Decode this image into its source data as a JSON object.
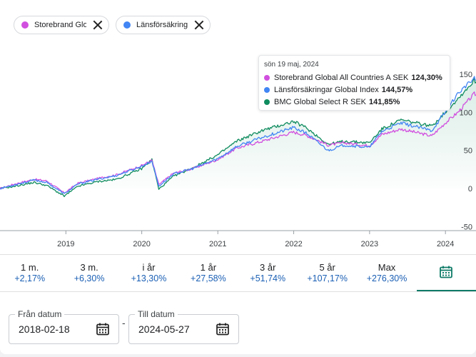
{
  "chips": [
    {
      "label": "Storebrand Glob...",
      "color": "#d14fdf"
    },
    {
      "label": "Länsförsäkringa...",
      "color": "#4285f4"
    }
  ],
  "tooltip": {
    "date": "sön 19 maj, 2024",
    "rows": [
      {
        "name": "Storebrand Global All Countries A SEK",
        "value": "124,30%",
        "color": "#d14fdf"
      },
      {
        "name": "Länsförsäkringar Global Index",
        "value": "144,57%",
        "color": "#4285f4"
      },
      {
        "name": "BMC Global Select R SEK",
        "value": "141,85%",
        "color": "#0f8c5f"
      }
    ]
  },
  "periods": [
    {
      "label": "1 m.",
      "value": "+2,17%"
    },
    {
      "label": "3 m.",
      "value": "+6,30%"
    },
    {
      "label": "i år",
      "value": "+13,30%"
    },
    {
      "label": "1 år",
      "value": "+27,58%"
    },
    {
      "label": "3 år",
      "value": "+51,74%"
    },
    {
      "label": "5 år",
      "value": "+107,17%"
    },
    {
      "label": "Max",
      "value": "+276,30%"
    }
  ],
  "calendar_tab_icon": "calendar-icon",
  "from_date": {
    "label": "Från datum",
    "value": "2018-02-18"
  },
  "to_date": {
    "label": "Till datum",
    "value": "2024-05-27"
  },
  "date_separator": "-",
  "chart_data": {
    "type": "line",
    "x_ticks": [
      "2019",
      "2020",
      "2021",
      "2022",
      "2023",
      "2024"
    ],
    "y_ticks": [
      150,
      100,
      50,
      0,
      -50
    ],
    "ylim": [
      -50,
      155
    ],
    "xlim": [
      "2018-02-18",
      "2024-05-27"
    ],
    "grid": false,
    "legend": "none",
    "series": [
      {
        "name": "Storebrand Global All Countries A SEK",
        "color": "#d14fdf",
        "points": [
          [
            "2018-02-18",
            0
          ],
          [
            "2018-05-01",
            6
          ],
          [
            "2018-08-01",
            12
          ],
          [
            "2018-10-01",
            10
          ],
          [
            "2018-12-24",
            -6
          ],
          [
            "2019-03-01",
            7
          ],
          [
            "2019-06-01",
            13
          ],
          [
            "2019-09-01",
            18
          ],
          [
            "2019-12-31",
            30
          ],
          [
            "2020-02-19",
            37
          ],
          [
            "2020-03-23",
            5
          ],
          [
            "2020-06-01",
            20
          ],
          [
            "2020-09-01",
            26
          ],
          [
            "2020-12-31",
            38
          ],
          [
            "2021-04-01",
            53
          ],
          [
            "2021-08-01",
            62
          ],
          [
            "2021-12-31",
            74
          ],
          [
            "2022-03-01",
            70
          ],
          [
            "2022-06-16",
            57
          ],
          [
            "2022-09-01",
            60
          ],
          [
            "2022-12-31",
            56
          ],
          [
            "2023-03-01",
            71
          ],
          [
            "2023-06-01",
            78
          ],
          [
            "2023-10-27",
            69
          ],
          [
            "2023-12-31",
            86
          ],
          [
            "2024-03-01",
            100
          ],
          [
            "2024-05-19",
            124.3
          ],
          [
            "2024-05-27",
            123
          ]
        ]
      },
      {
        "name": "Länsförsäkringar Global Index",
        "color": "#4285f4",
        "points": [
          [
            "2018-02-18",
            0
          ],
          [
            "2018-05-01",
            5
          ],
          [
            "2018-08-01",
            11
          ],
          [
            "2018-10-01",
            8
          ],
          [
            "2018-12-24",
            -7
          ],
          [
            "2019-03-01",
            6
          ],
          [
            "2019-06-01",
            12
          ],
          [
            "2019-09-01",
            17
          ],
          [
            "2019-12-31",
            29
          ],
          [
            "2020-02-19",
            36
          ],
          [
            "2020-03-23",
            3
          ],
          [
            "2020-06-01",
            19
          ],
          [
            "2020-09-01",
            26
          ],
          [
            "2020-12-31",
            39
          ],
          [
            "2021-04-01",
            55
          ],
          [
            "2021-08-01",
            67
          ],
          [
            "2021-12-31",
            80
          ],
          [
            "2022-03-01",
            73
          ],
          [
            "2022-06-16",
            50
          ],
          [
            "2022-09-01",
            57
          ],
          [
            "2022-12-31",
            54
          ],
          [
            "2023-03-01",
            75
          ],
          [
            "2023-06-01",
            86
          ],
          [
            "2023-10-27",
            76
          ],
          [
            "2023-12-31",
            100
          ],
          [
            "2024-03-01",
            125
          ],
          [
            "2024-05-19",
            144.57
          ],
          [
            "2024-05-27",
            142
          ]
        ]
      },
      {
        "name": "BMC Global Select R SEK",
        "color": "#0f8c5f",
        "points": [
          [
            "2018-02-18",
            0
          ],
          [
            "2018-05-01",
            3
          ],
          [
            "2018-08-01",
            8
          ],
          [
            "2018-10-01",
            4
          ],
          [
            "2018-12-24",
            -10
          ],
          [
            "2019-03-01",
            3
          ],
          [
            "2019-06-01",
            9
          ],
          [
            "2019-09-01",
            12
          ],
          [
            "2019-12-31",
            26
          ],
          [
            "2020-02-19",
            38
          ],
          [
            "2020-03-23",
            -1
          ],
          [
            "2020-06-01",
            16
          ],
          [
            "2020-09-01",
            27
          ],
          [
            "2020-12-31",
            44
          ],
          [
            "2021-04-01",
            62
          ],
          [
            "2021-08-01",
            76
          ],
          [
            "2021-12-31",
            88
          ],
          [
            "2022-03-01",
            80
          ],
          [
            "2022-06-16",
            58
          ],
          [
            "2022-09-01",
            62
          ],
          [
            "2022-12-31",
            60
          ],
          [
            "2023-03-01",
            78
          ],
          [
            "2023-06-01",
            90
          ],
          [
            "2023-10-27",
            82
          ],
          [
            "2023-12-31",
            100
          ],
          [
            "2024-03-01",
            118
          ],
          [
            "2024-05-19",
            141.85
          ],
          [
            "2024-05-27",
            140
          ]
        ]
      }
    ]
  }
}
